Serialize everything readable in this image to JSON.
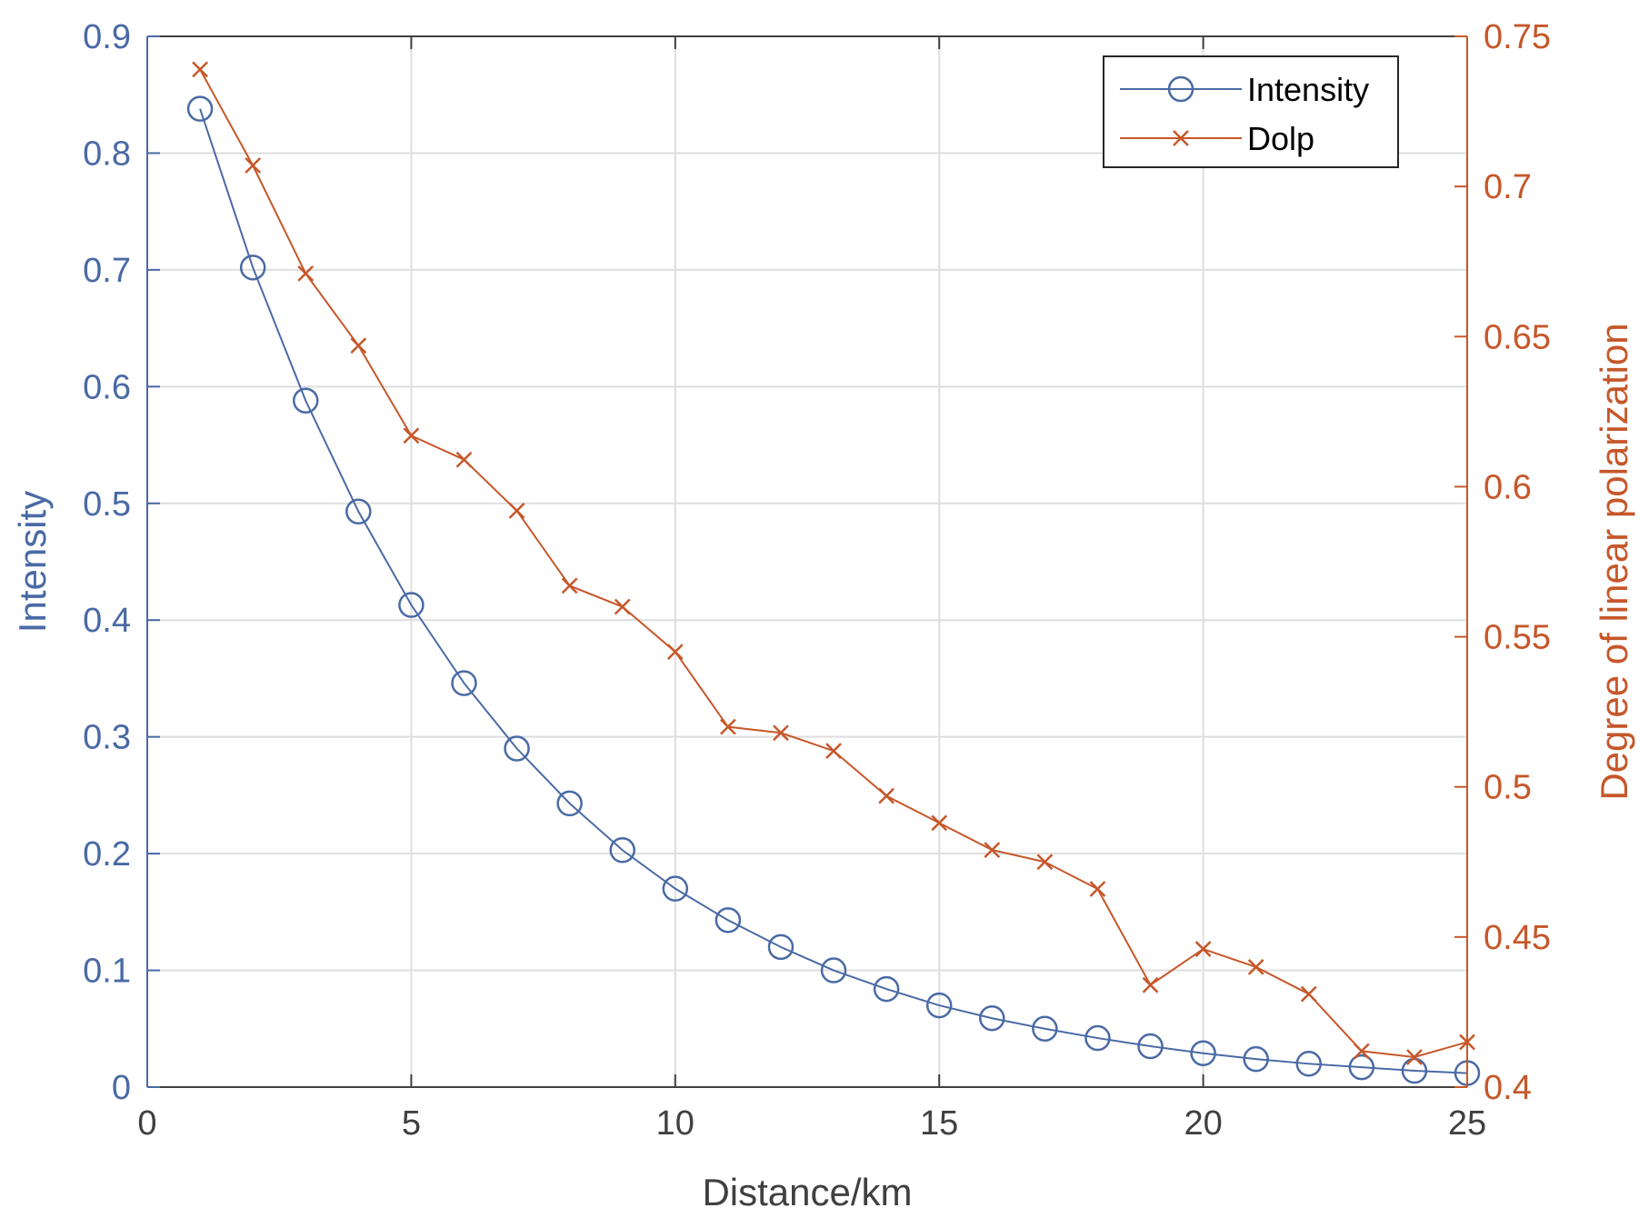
{
  "colors": {
    "left_axis": "#4a6aa5",
    "right_axis": "#c6572a",
    "bottom_axis": "#404040",
    "grid": "#dedede"
  },
  "chart_data": {
    "type": "line",
    "xlabel": "Distance/km",
    "ylabel_left": "Intensity",
    "ylabel_right": "Degree of linear polarization",
    "xlim": [
      0,
      25
    ],
    "ylim_left": [
      0,
      0.9
    ],
    "ylim_right": [
      0.4,
      0.75
    ],
    "x_ticks": [
      "0",
      "5",
      "10",
      "15",
      "20",
      "25"
    ],
    "y_left_ticks": [
      "0",
      "0.1",
      "0.2",
      "0.3",
      "0.4",
      "0.5",
      "0.6",
      "0.7",
      "0.8",
      "0.9"
    ],
    "y_right_ticks": [
      "0.4",
      "0.45",
      "0.5",
      "0.55",
      "0.6",
      "0.65",
      "0.7",
      "0.75"
    ],
    "grid": true,
    "legend_position": "top-right",
    "x": [
      1,
      2,
      3,
      4,
      5,
      6,
      7,
      8,
      9,
      10,
      11,
      12,
      13,
      14,
      15,
      16,
      17,
      18,
      19,
      20,
      21,
      22,
      23,
      24,
      25
    ],
    "series": [
      {
        "name": "Intensity",
        "axis": "left",
        "marker": "circle",
        "values": [
          0.838,
          0.702,
          0.588,
          0.493,
          0.413,
          0.346,
          0.29,
          0.243,
          0.203,
          0.17,
          0.143,
          0.12,
          0.1,
          0.084,
          0.07,
          0.059,
          0.05,
          0.042,
          0.035,
          0.029,
          0.024,
          0.02,
          0.017,
          0.014,
          0.012
        ]
      },
      {
        "name": "Dolp",
        "axis": "right",
        "marker": "x",
        "values": [
          0.739,
          0.707,
          0.671,
          0.647,
          0.617,
          0.609,
          0.592,
          0.567,
          0.56,
          0.545,
          0.52,
          0.518,
          0.512,
          0.497,
          0.488,
          0.479,
          0.475,
          0.466,
          0.434,
          0.446,
          0.44,
          0.431,
          0.412,
          0.41,
          0.415
        ]
      }
    ]
  }
}
